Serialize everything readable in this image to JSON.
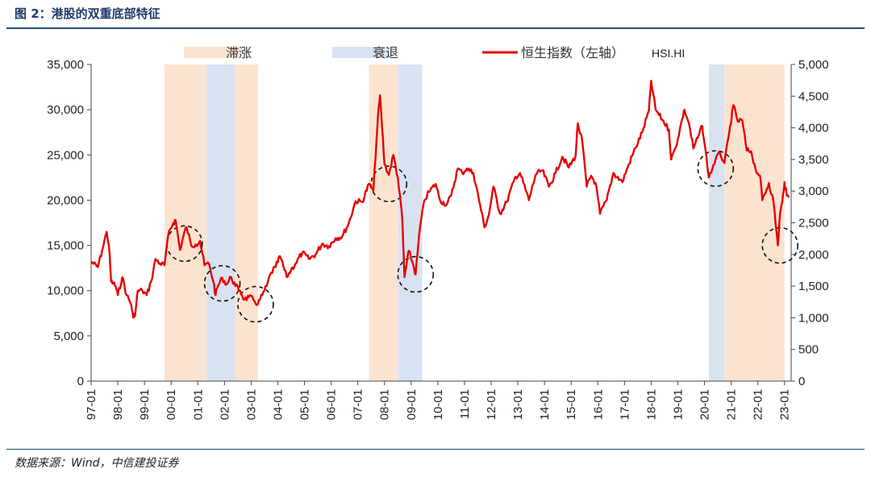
{
  "figure_title": "图 2：港股的双重底部特征",
  "source": "数据来源：Wind，中信建投证券",
  "colors": {
    "stagflation": "#fce3d0",
    "recession": "#d9e2f0",
    "line": "#e60000",
    "header": "#1f3a68"
  },
  "chart_data": {
    "type": "line",
    "legend_position": "top",
    "legend": [
      {
        "label": "滞涨",
        "kind": "band",
        "color": "#fce3d0"
      },
      {
        "label": "衰退",
        "kind": "band",
        "color": "#d9e2f0"
      },
      {
        "label": "恒生指数（左轴）",
        "suffix": "HSI.HI",
        "kind": "line",
        "color": "#e60000"
      }
    ],
    "x_tick_labels": [
      "97-01",
      "98-01",
      "99-01",
      "00-01",
      "01-01",
      "02-01",
      "03-01",
      "04-01",
      "05-01",
      "06-01",
      "07-01",
      "08-01",
      "09-01",
      "10-01",
      "11-01",
      "12-01",
      "13-01",
      "14-01",
      "15-01",
      "16-01",
      "17-01",
      "18-01",
      "19-01",
      "20-01",
      "21-01",
      "22-01",
      "23-01"
    ],
    "xlim": [
      "1997-01",
      "2023-04"
    ],
    "ylim_left": [
      0,
      35000
    ],
    "y_ticks_left": [
      "0",
      "5,000",
      "10,000",
      "15,000",
      "20,000",
      "25,000",
      "30,000",
      "35,000"
    ],
    "ylim_right": [
      0,
      5000
    ],
    "y_ticks_right": [
      "0",
      "500",
      "1,000",
      "1,500",
      "2,000",
      "2,500",
      "3,000",
      "3,500",
      "4,000",
      "4,500",
      "5,000"
    ],
    "bands": [
      {
        "type": "stagflation",
        "start": "1999-10",
        "end": "2001-05"
      },
      {
        "type": "recession",
        "start": "2001-05",
        "end": "2002-06"
      },
      {
        "type": "stagflation",
        "start": "2002-06",
        "end": "2003-04"
      },
      {
        "type": "stagflation",
        "start": "2007-06",
        "end": "2008-07"
      },
      {
        "type": "recession",
        "start": "2008-07",
        "end": "2009-06"
      },
      {
        "type": "recession",
        "start": "2020-03",
        "end": "2020-10"
      },
      {
        "type": "stagflation",
        "start": "2020-10",
        "end": "2023-01"
      }
    ],
    "series": [
      {
        "name": "恒生指数（左轴）",
        "points": [
          [
            "1997-01",
            13200
          ],
          [
            "1997-04",
            12600
          ],
          [
            "1997-06",
            14500
          ],
          [
            "1997-08",
            16500
          ],
          [
            "1997-09",
            15000
          ],
          [
            "1997-10",
            11000
          ],
          [
            "1997-11",
            10800
          ],
          [
            "1997-12",
            10500
          ],
          [
            "1998-01",
            9500
          ],
          [
            "1998-03",
            11500
          ],
          [
            "1998-05",
            9500
          ],
          [
            "1998-07",
            8500
          ],
          [
            "1998-08",
            7000
          ],
          [
            "1998-09",
            7700
          ],
          [
            "1998-10",
            10000
          ],
          [
            "1998-12",
            10000
          ],
          [
            "1999-02",
            9500
          ],
          [
            "1999-04",
            11000
          ],
          [
            "1999-06",
            13500
          ],
          [
            "1999-08",
            13000
          ],
          [
            "1999-10",
            12800
          ],
          [
            "1999-12",
            16500
          ],
          [
            "2000-02",
            17500
          ],
          [
            "2000-03",
            17800
          ],
          [
            "2000-05",
            14500
          ],
          [
            "2000-07",
            16500
          ],
          [
            "2000-08",
            17000
          ],
          [
            "2000-10",
            15000
          ],
          [
            "2000-12",
            15100
          ],
          [
            "2001-02",
            15500
          ],
          [
            "2001-04",
            12800
          ],
          [
            "2001-06",
            13000
          ],
          [
            "2001-08",
            11000
          ],
          [
            "2001-09",
            9500
          ],
          [
            "2001-10",
            10500
          ],
          [
            "2001-12",
            11400
          ],
          [
            "2002-02",
            10700
          ],
          [
            "2002-04",
            11500
          ],
          [
            "2002-06",
            10500
          ],
          [
            "2002-08",
            10000
          ],
          [
            "2002-10",
            9000
          ],
          [
            "2002-12",
            9300
          ],
          [
            "2003-02",
            9000
          ],
          [
            "2003-04",
            8500
          ],
          [
            "2003-06",
            9500
          ],
          [
            "2003-08",
            10500
          ],
          [
            "2003-10",
            12000
          ],
          [
            "2003-12",
            12600
          ],
          [
            "2004-02",
            13800
          ],
          [
            "2004-05",
            11500
          ],
          [
            "2004-07",
            12300
          ],
          [
            "2004-09",
            13000
          ],
          [
            "2004-12",
            14200
          ],
          [
            "2005-03",
            13500
          ],
          [
            "2005-06",
            14000
          ],
          [
            "2005-09",
            15200
          ],
          [
            "2005-12",
            14900
          ],
          [
            "2006-03",
            15800
          ],
          [
            "2006-06",
            16000
          ],
          [
            "2006-09",
            17500
          ],
          [
            "2006-12",
            19900
          ],
          [
            "2007-03",
            19800
          ],
          [
            "2007-06",
            21800
          ],
          [
            "2007-08",
            21000
          ],
          [
            "2007-10",
            29000
          ],
          [
            "2007-11",
            31600
          ],
          [
            "2007-12",
            27800
          ],
          [
            "2008-01",
            24000
          ],
          [
            "2008-03",
            22800
          ],
          [
            "2008-05",
            25000
          ],
          [
            "2008-07",
            22500
          ],
          [
            "2008-09",
            18000
          ],
          [
            "2008-10",
            11500
          ],
          [
            "2008-11",
            13000
          ],
          [
            "2008-12",
            14400
          ],
          [
            "2009-02",
            12800
          ],
          [
            "2009-03",
            11800
          ],
          [
            "2009-05",
            17000
          ],
          [
            "2009-07",
            20000
          ],
          [
            "2009-09",
            20900
          ],
          [
            "2009-12",
            21800
          ],
          [
            "2010-02",
            20000
          ],
          [
            "2010-05",
            19500
          ],
          [
            "2010-07",
            20500
          ],
          [
            "2010-10",
            23500
          ],
          [
            "2010-12",
            23000
          ],
          [
            "2011-02",
            23500
          ],
          [
            "2011-05",
            23000
          ],
          [
            "2011-08",
            19500
          ],
          [
            "2011-10",
            17000
          ],
          [
            "2011-12",
            18400
          ],
          [
            "2012-02",
            21500
          ],
          [
            "2012-05",
            18500
          ],
          [
            "2012-08",
            19800
          ],
          [
            "2012-12",
            22600
          ],
          [
            "2013-02",
            23000
          ],
          [
            "2013-06",
            20000
          ],
          [
            "2013-09",
            22800
          ],
          [
            "2013-12",
            23300
          ],
          [
            "2014-03",
            21500
          ],
          [
            "2014-06",
            23000
          ],
          [
            "2014-09",
            24800
          ],
          [
            "2014-12",
            23600
          ],
          [
            "2015-03",
            24900
          ],
          [
            "2015-04",
            28500
          ],
          [
            "2015-06",
            26500
          ],
          [
            "2015-08",
            21500
          ],
          [
            "2015-10",
            22700
          ],
          [
            "2015-12",
            21900
          ],
          [
            "2016-02",
            18500
          ],
          [
            "2016-05",
            20000
          ],
          [
            "2016-08",
            23000
          ],
          [
            "2016-12",
            22000
          ],
          [
            "2017-03",
            24000
          ],
          [
            "2017-06",
            25800
          ],
          [
            "2017-09",
            27500
          ],
          [
            "2017-12",
            29900
          ],
          [
            "2018-01",
            33200
          ],
          [
            "2018-03",
            30000
          ],
          [
            "2018-06",
            28900
          ],
          [
            "2018-09",
            27800
          ],
          [
            "2018-10",
            24500
          ],
          [
            "2018-12",
            25800
          ],
          [
            "2019-03",
            29000
          ],
          [
            "2019-04",
            30000
          ],
          [
            "2019-06",
            28500
          ],
          [
            "2019-08",
            25700
          ],
          [
            "2019-10",
            26900
          ],
          [
            "2019-12",
            28200
          ],
          [
            "2020-01",
            26300
          ],
          [
            "2020-03",
            22500
          ],
          [
            "2020-06",
            24500
          ],
          [
            "2020-08",
            25200
          ],
          [
            "2020-10",
            24100
          ],
          [
            "2020-12",
            27200
          ],
          [
            "2021-02",
            30500
          ],
          [
            "2021-04",
            28700
          ],
          [
            "2021-06",
            28800
          ],
          [
            "2021-08",
            25500
          ],
          [
            "2021-10",
            25400
          ],
          [
            "2021-12",
            23400
          ],
          [
            "2022-02",
            22700
          ],
          [
            "2022-03",
            20000
          ],
          [
            "2022-06",
            21900
          ],
          [
            "2022-08",
            19900
          ],
          [
            "2022-10",
            15000
          ],
          [
            "2022-11",
            18500
          ],
          [
            "2022-12",
            19800
          ],
          [
            "2023-01",
            22000
          ],
          [
            "2023-02",
            20500
          ],
          [
            "2023-03",
            20300
          ]
        ]
      }
    ],
    "annotations": [
      {
        "kind": "dashed-circle",
        "x": "2000-07",
        "y": 15200
      },
      {
        "kind": "dashed-circle",
        "x": "2001-12",
        "y": 10800
      },
      {
        "kind": "dashed-circle",
        "x": "2003-03",
        "y": 8500
      },
      {
        "kind": "dashed-circle",
        "x": "2008-03",
        "y": 21800
      },
      {
        "kind": "dashed-circle",
        "x": "2009-03",
        "y": 11800
      },
      {
        "kind": "dashed-circle",
        "x": "2020-06",
        "y": 23500
      },
      {
        "kind": "dashed-circle",
        "x": "2022-11",
        "y": 15000
      }
    ]
  }
}
